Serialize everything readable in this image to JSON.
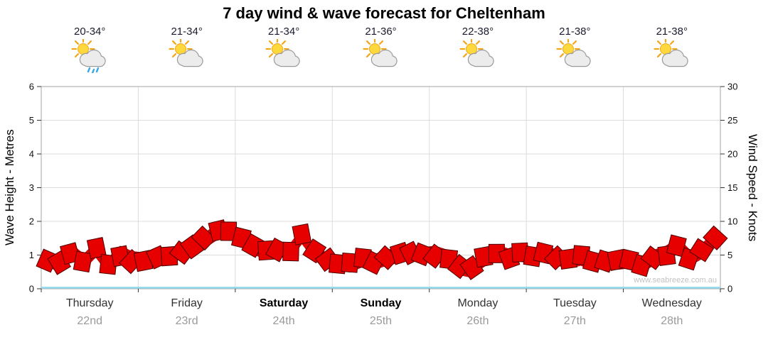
{
  "title": "7 day wind & wave forecast for Cheltenham",
  "watermark": "www.seabreeze.com.au",
  "axes": {
    "left_label": "Wave Height - Metres",
    "right_label": "Wind Speed - Knots",
    "left_ticks": [
      0,
      1,
      2,
      3,
      4,
      5,
      6
    ],
    "right_ticks": [
      0,
      5,
      10,
      15,
      20,
      25,
      30
    ]
  },
  "days": [
    {
      "name": "Thursday",
      "date": "22nd",
      "temp": "20-34°",
      "icon": "sun-cloud-rain",
      "bold": false
    },
    {
      "name": "Friday",
      "date": "23rd",
      "temp": "21-34°",
      "icon": "sun-cloud",
      "bold": false
    },
    {
      "name": "Saturday",
      "date": "24th",
      "temp": "21-34°",
      "icon": "sun-cloud",
      "bold": true
    },
    {
      "name": "Sunday",
      "date": "25th",
      "temp": "21-36°",
      "icon": "sun-cloud",
      "bold": true
    },
    {
      "name": "Monday",
      "date": "26th",
      "temp": "22-38°",
      "icon": "sun-cloud",
      "bold": false
    },
    {
      "name": "Tuesday",
      "date": "27th",
      "temp": "21-38°",
      "icon": "sun-cloud",
      "bold": false
    },
    {
      "name": "Wednesday",
      "date": "28th",
      "temp": "21-38°",
      "icon": "sun-cloud",
      "bold": false
    }
  ],
  "chart_data": {
    "type": "line",
    "title": "7 day wind & wave forecast for Cheltenham",
    "categories": [
      "Thursday 22nd",
      "Friday 23rd",
      "Saturday 24th",
      "Sunday 25th",
      "Monday 26th",
      "Tuesday 27th",
      "Wednesday 28th"
    ],
    "points_per_day": 8,
    "ylabel_left": "Wave Height - Metres",
    "ylabel_right": "Wind Speed - Knots",
    "ylim_left": [
      0,
      6
    ],
    "ylim_right": [
      0,
      30
    ],
    "grid": true,
    "series": [
      {
        "name": "Wind Speed (knots)",
        "color": "#e60000",
        "values": [
          4.5,
          3.6,
          5.5,
          4.0,
          5.8,
          3.4,
          5.2,
          4.4,
          4.2,
          5.0,
          4.6,
          5.6,
          6.4,
          7.2,
          8.4,
          8.7,
          7.4,
          6.2,
          5.6,
          6.0,
          5.5,
          7.8,
          5.4,
          4.2,
          3.8,
          3.6,
          4.4,
          4.0,
          4.6,
          5.0,
          5.4,
          5.0,
          5.2,
          4.6,
          3.2,
          2.8,
          4.4,
          5.4,
          4.8,
          5.2,
          4.8,
          5.4,
          4.6,
          4.2,
          4.6,
          3.8,
          4.4,
          4.0,
          4.2,
          3.6,
          4.6,
          5.2,
          6.4,
          4.6,
          5.6,
          7.2
        ]
      }
    ],
    "colors": {
      "band": "#e60000",
      "band_edge": "#4d0000",
      "baseline": "#8fd9ec",
      "grid": "#dcdcdc"
    }
  }
}
